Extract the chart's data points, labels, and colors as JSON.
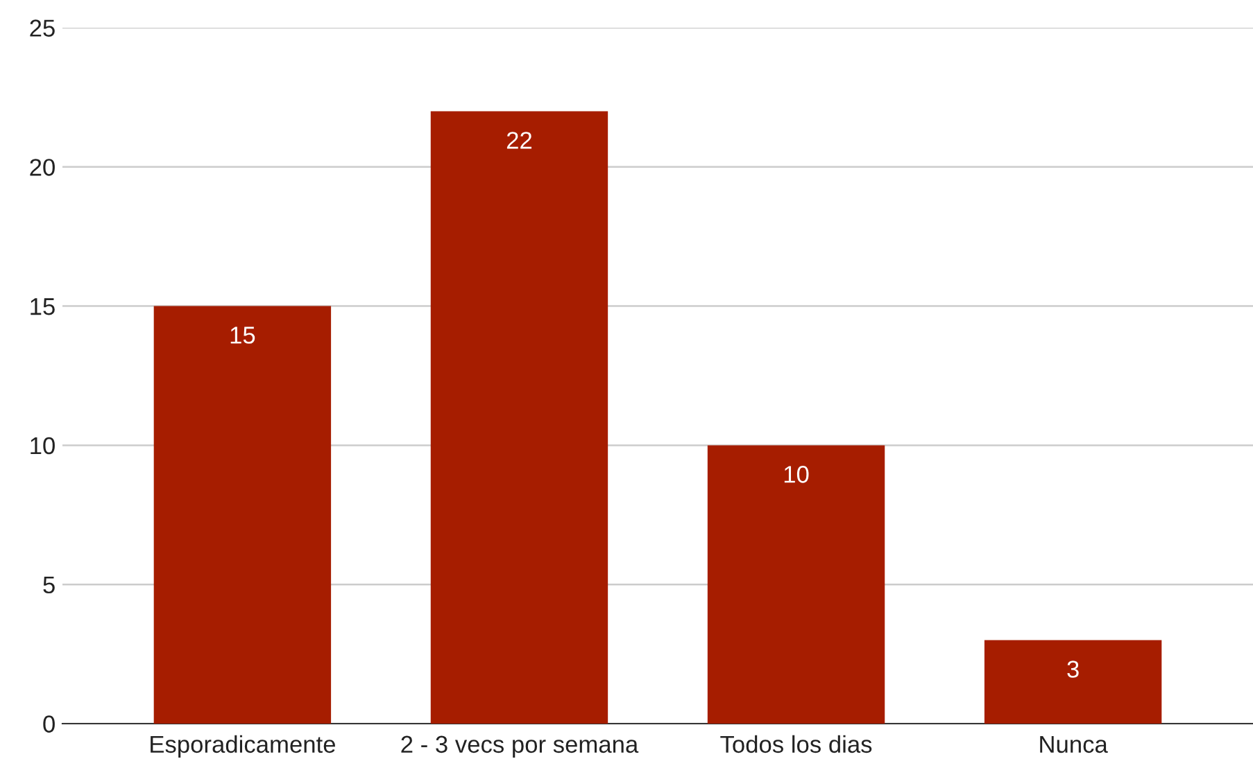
{
  "chart_data": {
    "type": "bar",
    "categories": [
      "Esporadicamente",
      "2 - 3 vecs por semana",
      "Todos los dias",
      "Nunca"
    ],
    "values": [
      15,
      22,
      10,
      3
    ],
    "color": "#a61d00",
    "ylim": [
      0,
      25
    ],
    "yticks": [
      0,
      5,
      10,
      15,
      20,
      25
    ],
    "grid": "y",
    "data_labels": true,
    "legend": false
  }
}
